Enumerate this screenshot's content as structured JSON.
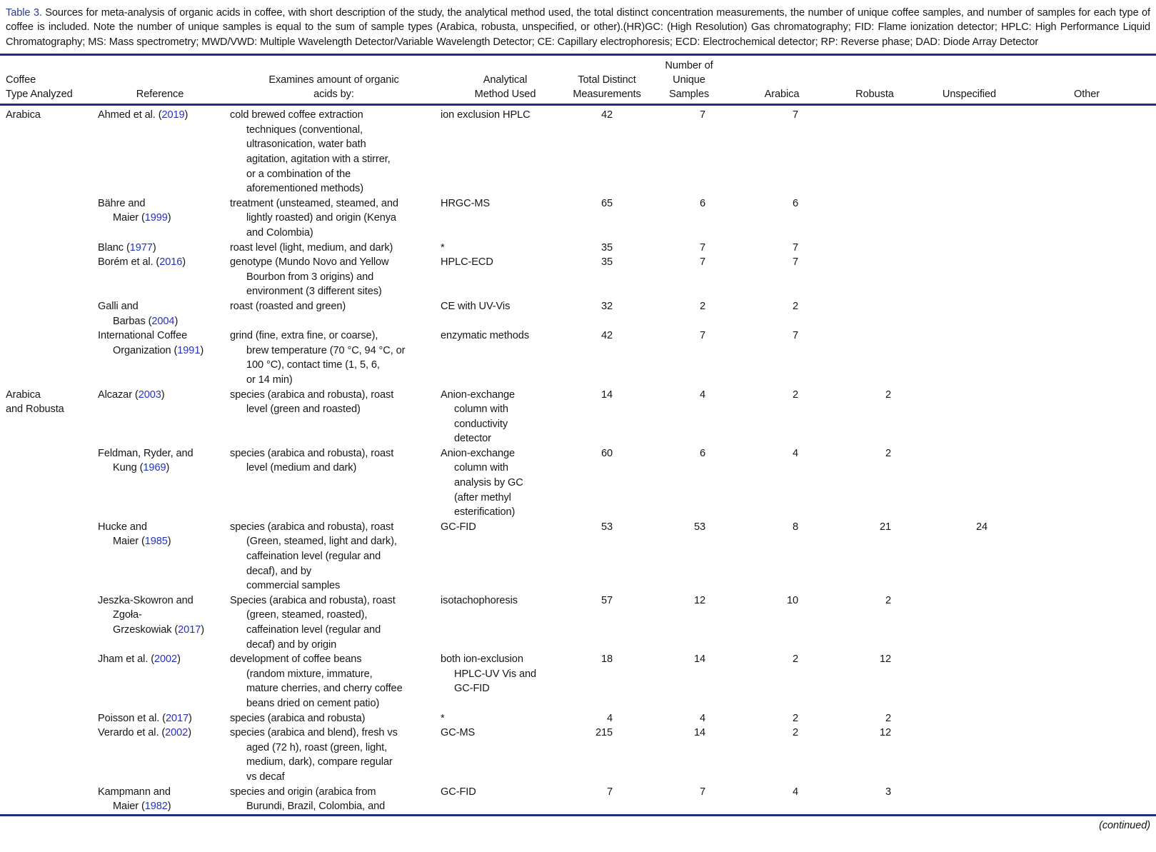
{
  "colors": {
    "rule": "#1f2d87",
    "table_label": "#2c3a9e",
    "link": "#2433bd"
  },
  "caption": {
    "label": "Table 3.",
    "text": "Sources for meta-analysis of organic acids in coffee, with short description of the study, the analytical method used, the total distinct concentration measurements, the number of unique coffee samples, and number of samples for each type of coffee is included. Note the number of unique samples is equal to the sum of sample types (Arabica, robusta, unspecified, or other).(HR)GC: (High Resolution) Gas chromatography; FID: Flame ionization detector; HPLC: High Performance Liquid Chromatography; MS: Mass spectrometry; MWD/VWD: Multiple Wavelength Detector/Variable Wavelength Detector; CE: Capillary electrophoresis; ECD: Electrochemical detector; RP: Reverse phase; DAD: Diode Array Detector"
  },
  "columns": [
    "Coffee\nType Analyzed",
    "Reference",
    "Examines amount of organic\nacids by:",
    "Analytical\nMethod Used",
    "Total Distinct\nMeasurements",
    "Number of\nUnique\nSamples",
    "Arabica",
    "Robusta",
    "Unspecified",
    "Other"
  ],
  "rows": [
    {
      "group": [
        "Arabica"
      ],
      "ref": [
        "Ahmed et al. (2019)"
      ],
      "desc": [
        "cold brewed coffee extraction",
        "techniques (conventional,",
        "ultrasonication, water bath",
        "agitation, agitation with a stirrer,",
        "or a combination of the",
        "aforementioned methods)"
      ],
      "method": [
        "ion exclusion HPLC"
      ],
      "total": "42",
      "unique": "7",
      "arabica": "7",
      "robusta": "",
      "unspecified": "",
      "other": ""
    },
    {
      "group": [],
      "ref": [
        "Bähre and",
        "Maier (1999)"
      ],
      "desc": [
        "treatment (unsteamed, steamed, and",
        "lightly roasted) and origin (Kenya",
        "and Colombia)"
      ],
      "method": [
        "HRGC-MS"
      ],
      "total": "65",
      "unique": "6",
      "arabica": "6",
      "robusta": "",
      "unspecified": "",
      "other": ""
    },
    {
      "group": [],
      "ref": [
        "Blanc (1977)"
      ],
      "desc": [
        "roast level (light, medium, and dark)"
      ],
      "method": [
        "*"
      ],
      "total": "35",
      "unique": "7",
      "arabica": "7",
      "robusta": "",
      "unspecified": "",
      "other": ""
    },
    {
      "group": [],
      "ref": [
        "Borém et al. (2016)"
      ],
      "desc": [
        "genotype (Mundo Novo and Yellow",
        "Bourbon from 3 origins) and",
        "environment (3 different sites)"
      ],
      "method": [
        "HPLC-ECD"
      ],
      "total": "35",
      "unique": "7",
      "arabica": "7",
      "robusta": "",
      "unspecified": "",
      "other": ""
    },
    {
      "group": [],
      "ref": [
        "Galli and",
        "Barbas (2004)"
      ],
      "desc": [
        "roast (roasted and green)"
      ],
      "method": [
        "CE with UV-Vis"
      ],
      "total": "32",
      "unique": "2",
      "arabica": "2",
      "robusta": "",
      "unspecified": "",
      "other": ""
    },
    {
      "group": [],
      "ref": [
        "International Coffee",
        "Organization (1991)"
      ],
      "desc": [
        "grind (fine, extra fine, or coarse),",
        "brew temperature (70 °C, 94 °C, or",
        "100 °C), contact time (1, 5, 6,",
        "or 14 min)"
      ],
      "method": [
        "enzymatic methods"
      ],
      "total": "42",
      "unique": "7",
      "arabica": "7",
      "robusta": "",
      "unspecified": "",
      "other": ""
    },
    {
      "group": [
        "Arabica",
        "and Robusta"
      ],
      "ref": [
        "Alcazar (2003)"
      ],
      "desc": [
        "species (arabica and robusta), roast",
        "level (green and roasted)"
      ],
      "method": [
        "Anion-exchange",
        "column with",
        "conductivity",
        "detector"
      ],
      "total": "14",
      "unique": "4",
      "arabica": "2",
      "robusta": "2",
      "unspecified": "",
      "other": ""
    },
    {
      "group": [],
      "ref": [
        "Feldman, Ryder, and",
        "Kung (1969)"
      ],
      "desc": [
        "species (arabica and robusta), roast",
        "level (medium and dark)"
      ],
      "method": [
        "Anion-exchange",
        "column with",
        "analysis by GC",
        "(after methyl",
        "esterification)"
      ],
      "total": "60",
      "unique": "6",
      "arabica": "4",
      "robusta": "2",
      "unspecified": "",
      "other": ""
    },
    {
      "group": [],
      "ref": [
        "Hucke and",
        "Maier (1985)"
      ],
      "desc": [
        "species (arabica and robusta), roast",
        "(Green, steamed, light and dark),",
        "caffeination level (regular and",
        "decaf), and by",
        "commercial samples"
      ],
      "method": [
        "GC-FID"
      ],
      "total": "53",
      "unique": "53",
      "arabica": "8",
      "robusta": "21",
      "unspecified": "24",
      "other": ""
    },
    {
      "group": [],
      "ref": [
        "Jeszka-Skowron and",
        "Zgoła-",
        "Grzeskowiak (2017)"
      ],
      "desc": [
        "Species (arabica and robusta), roast",
        "(green, steamed, roasted),",
        "caffeination level (regular and",
        "decaf) and by origin"
      ],
      "method": [
        "isotachophoresis"
      ],
      "total": "57",
      "unique": "12",
      "arabica": "10",
      "robusta": "2",
      "unspecified": "",
      "other": ""
    },
    {
      "group": [],
      "ref": [
        "Jham et al. (2002)"
      ],
      "desc": [
        "development of coffee beans",
        "(random mixture, immature,",
        "mature cherries, and cherry coffee",
        "beans dried on cement patio)"
      ],
      "method": [
        "both ion-exclusion",
        "HPLC-UV Vis and",
        "GC-FID"
      ],
      "total": "18",
      "unique": "14",
      "arabica": "2",
      "robusta": "12",
      "unspecified": "",
      "other": ""
    },
    {
      "group": [],
      "ref": [
        "Poisson et al. (2017)"
      ],
      "desc": [
        "species (arabica and robusta)"
      ],
      "method": [
        "*"
      ],
      "total": "4",
      "unique": "4",
      "arabica": "2",
      "robusta": "2",
      "unspecified": "",
      "other": ""
    },
    {
      "group": [],
      "ref": [
        "Verardo et al. (2002)"
      ],
      "desc": [
        "species (arabica and blend), fresh vs",
        "aged (72 h), roast (green, light,",
        "medium, dark), compare regular",
        "vs decaf"
      ],
      "method": [
        "GC-MS"
      ],
      "total": "215",
      "unique": "14",
      "arabica": "2",
      "robusta": "12",
      "unspecified": "",
      "other": ""
    },
    {
      "group": [],
      "ref": [
        "Kampmann and",
        "Maier (1982)"
      ],
      "desc": [
        "species and origin (arabica from",
        "Burundi, Brazil, Colombia, and"
      ],
      "method": [
        "GC-FID"
      ],
      "total": "7",
      "unique": "7",
      "arabica": "4",
      "robusta": "3",
      "unspecified": "",
      "other": ""
    }
  ],
  "continued_note": "(continued)"
}
